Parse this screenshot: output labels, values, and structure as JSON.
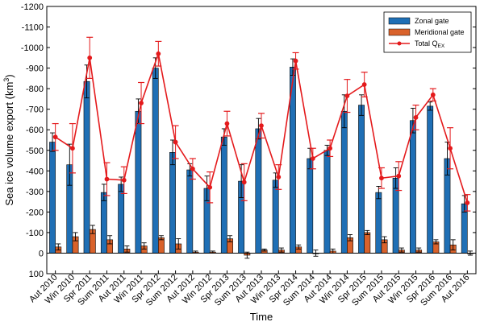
{
  "chart_data": {
    "type": "bar",
    "xlabel": "Time",
    "ylabel": "Sea ice volume export (km",
    "ylabel_sup": "3",
    "ylabel_close": ")",
    "ylim": [
      100,
      -1200
    ],
    "y_reversed": true,
    "yticks": [
      100,
      0,
      -100,
      -200,
      -300,
      -400,
      -500,
      -600,
      -700,
      -800,
      -900,
      -1000,
      -1100,
      -1200
    ],
    "grid": false,
    "legend_position": "top-right",
    "categories": [
      "Aut 2010",
      "Win 2010",
      "Spr 2011",
      "Sum 2011",
      "Aut 2011",
      "Win 2011",
      "Spr 2012",
      "Sum 2012",
      "Aut 2012",
      "Win 2012",
      "Spr 2013",
      "Sum 2013",
      "Aut 2013",
      "Win 2013",
      "Spr 2014",
      "Sum 2014",
      "Aut 2014",
      "Win 2014",
      "Spr 2015",
      "Sum 2015",
      "Aut 2015",
      "Win 2015",
      "Spr 2016",
      "Sum 2016",
      "Aut 2016"
    ],
    "series": [
      {
        "name": "Zonal gate",
        "type": "bar",
        "color": "#1f6fb5",
        "values": [
          -540,
          -430,
          -835,
          -295,
          -335,
          -690,
          -900,
          -490,
          -405,
          -315,
          -565,
          -350,
          -605,
          -355,
          -905,
          -460,
          -500,
          -690,
          -720,
          -295,
          -365,
          -645,
          -715,
          -460,
          -240
        ],
        "errors": [
          45,
          100,
          80,
          40,
          35,
          60,
          50,
          60,
          30,
          60,
          40,
          80,
          50,
          35,
          40,
          50,
          25,
          80,
          50,
          30,
          50,
          60,
          20,
          80,
          40
        ]
      },
      {
        "name": "Meridional gate",
        "type": "bar",
        "color": "#d9622b",
        "values": [
          -30,
          -80,
          -115,
          -65,
          -20,
          -35,
          -75,
          -45,
          -5,
          -5,
          -70,
          10,
          -15,
          -15,
          -30,
          0,
          -10,
          -75,
          -100,
          -65,
          -15,
          -15,
          -55,
          -40,
          0
        ],
        "errors": [
          15,
          20,
          20,
          20,
          15,
          15,
          10,
          25,
          5,
          5,
          15,
          15,
          5,
          10,
          10,
          15,
          10,
          15,
          10,
          15,
          10,
          10,
          10,
          25,
          10
        ]
      },
      {
        "name": "Total Q",
        "name_sub": "EX",
        "type": "line",
        "color": "#e41a1c",
        "values": [
          -565,
          -510,
          -950,
          -360,
          -355,
          -730,
          -970,
          -540,
          -410,
          -320,
          -630,
          -345,
          -620,
          -370,
          -935,
          -460,
          -510,
          -765,
          -820,
          -365,
          -375,
          -660,
          -770,
          -510,
          -245
        ],
        "errors": [
          65,
          120,
          100,
          80,
          65,
          100,
          60,
          80,
          50,
          75,
          60,
          90,
          60,
          60,
          40,
          50,
          40,
          80,
          60,
          50,
          70,
          60,
          30,
          100,
          40
        ]
      }
    ]
  }
}
